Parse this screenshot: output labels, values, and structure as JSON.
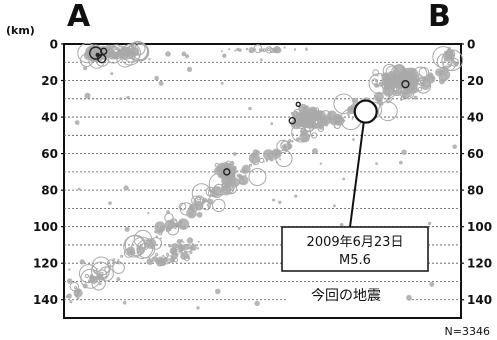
{
  "chart_data": {
    "type": "scatter",
    "title": "",
    "xlabel": "",
    "ylabel": "(km)",
    "ylim": [
      0,
      150
    ],
    "y_ticks": [
      0,
      20,
      40,
      60,
      80,
      100,
      120,
      140
    ],
    "y_tick_labels": [
      "0",
      "20",
      "40",
      "60",
      "80",
      "100",
      "120",
      "140"
    ],
    "y_inverted": true,
    "grid": "horizontal dashed lines every 10 km",
    "section_start_label": "A",
    "section_end_label": "B",
    "count_label": "N=3346",
    "highlight_event": {
      "date_label": "2009年6月23日",
      "magnitude_label": "M5.6",
      "caption": "今回の地震",
      "position_fraction_along_section": 0.76,
      "depth_km": 37
    },
    "point_color": "#a9a9a9",
    "highlight_color": "#ffffff",
    "dark_event_color": "#222222"
  }
}
